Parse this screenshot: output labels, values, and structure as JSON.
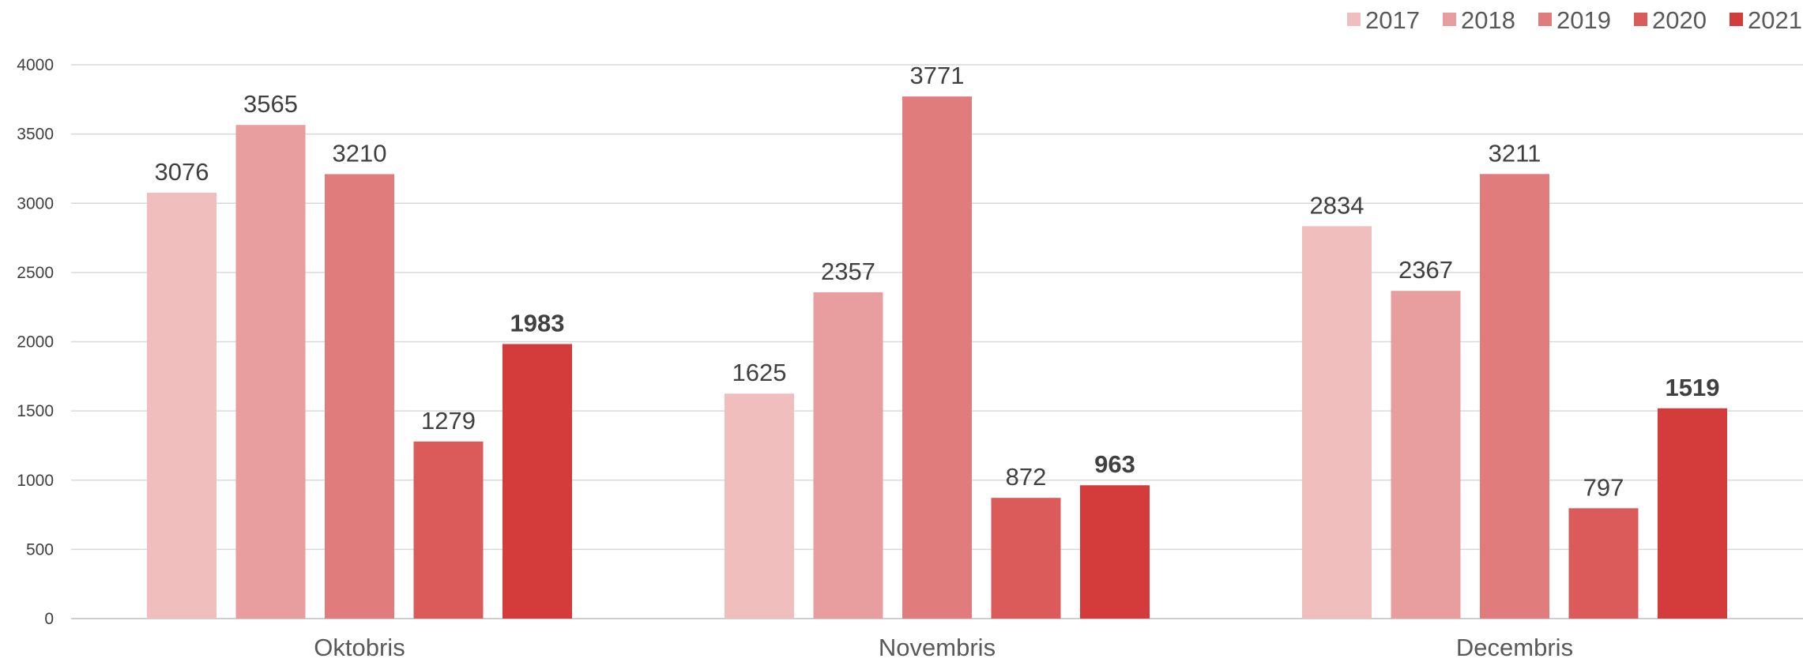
{
  "chart_data": {
    "type": "bar",
    "categories": [
      "Oktobris",
      "Novembris",
      "Decembris"
    ],
    "series": [
      {
        "name": "2017",
        "values": [
          3076,
          1625,
          2834
        ],
        "color": "#f0bebd",
        "bold_labels": false
      },
      {
        "name": "2018",
        "values": [
          3565,
          2357,
          2367
        ],
        "color": "#e89e9e",
        "bold_labels": false
      },
      {
        "name": "2019",
        "values": [
          3210,
          3771,
          3211
        ],
        "color": "#e17c7c",
        "bold_labels": false
      },
      {
        "name": "2020",
        "values": [
          1279,
          872,
          797
        ],
        "color": "#db5a5a",
        "bold_labels": false
      },
      {
        "name": "2021",
        "values": [
          1983,
          963,
          1519
        ],
        "color": "#d43b3b",
        "bold_labels": true
      }
    ],
    "yticks": [
      "0",
      "500",
      "1000",
      "1500",
      "2000",
      "2500",
      "3000",
      "3500",
      "4000"
    ],
    "ylim": [
      0,
      4000
    ],
    "grid": true,
    "legend_position": "top-right",
    "title": "",
    "xlabel": "",
    "ylabel": ""
  }
}
